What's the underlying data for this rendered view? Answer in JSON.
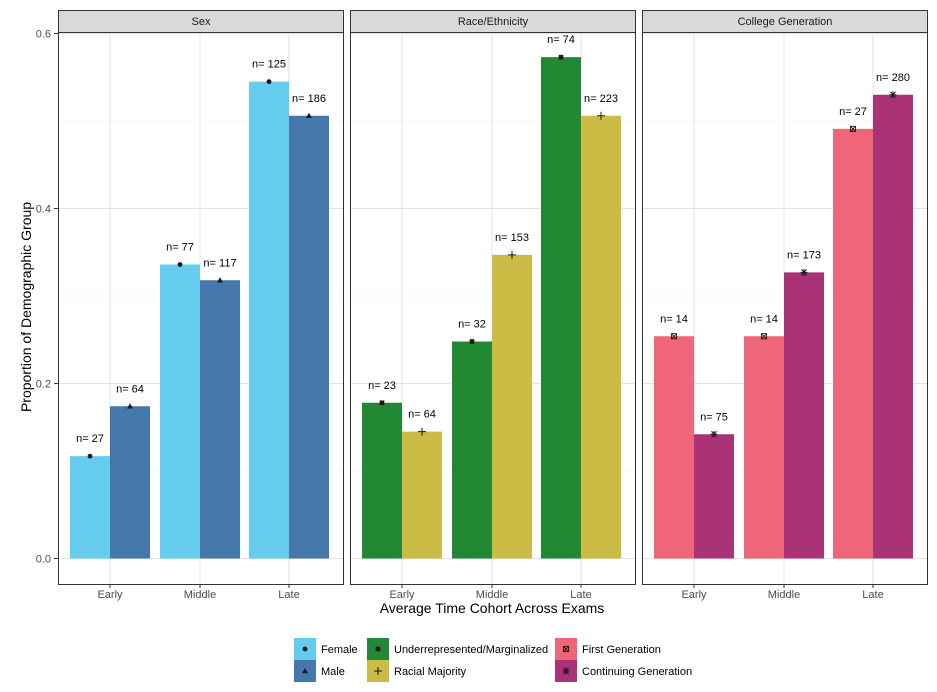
{
  "chart_data": {
    "type": "bar",
    "xlabel": "Average Time Cohort Across Exams",
    "ylabel": "Proportion of Demographic Group",
    "ylim": [
      0,
      0.6
    ],
    "yticks": [
      "0.0",
      "0.2",
      "0.4",
      "0.6"
    ],
    "ytick_values": [
      0,
      0.2,
      0.4,
      0.6
    ],
    "categories": [
      "Early",
      "Middle",
      "Late"
    ],
    "grid": true,
    "legend_position": "bottom",
    "facets": [
      {
        "name": "Sex",
        "series": [
          {
            "name": "Female",
            "color": "#66CCEE",
            "marker": "circle",
            "values": [
              0.117,
              0.336,
              0.545
            ],
            "n_labels": [
              "n= 27",
              "n= 77",
              "n= 125"
            ]
          },
          {
            "name": "Male",
            "color": "#4477AA",
            "marker": "triangle",
            "values": [
              0.174,
              0.318,
              0.506
            ],
            "n_labels": [
              "n= 64",
              "n= 117",
              "n= 186"
            ]
          }
        ]
      },
      {
        "name": "Race/Ethnicity",
        "series": [
          {
            "name": "Underrepresented/Marginalized",
            "color": "#228833",
            "marker": "square",
            "values": [
              0.178,
              0.248,
              0.573
            ],
            "n_labels": [
              "n= 23",
              "n= 32",
              "n= 74"
            ]
          },
          {
            "name": "Racial Majority",
            "color": "#CCBB44",
            "marker": "plus",
            "values": [
              0.145,
              0.347,
              0.506
            ],
            "n_labels": [
              "n= 64",
              "n= 153",
              "n= 223"
            ]
          }
        ]
      },
      {
        "name": "College Generation",
        "series": [
          {
            "name": "First Generation",
            "color": "#EE6677",
            "marker": "boxx",
            "values": [
              0.254,
              0.254,
              0.491
            ],
            "n_labels": [
              "n= 14",
              "n= 14",
              "n= 27"
            ]
          },
          {
            "name": "Continuing Generation",
            "color": "#AA3377",
            "marker": "asterisk",
            "values": [
              0.142,
              0.327,
              0.53
            ],
            "n_labels": [
              "n= 75",
              "n= 173",
              "n= 280"
            ]
          }
        ]
      }
    ]
  }
}
